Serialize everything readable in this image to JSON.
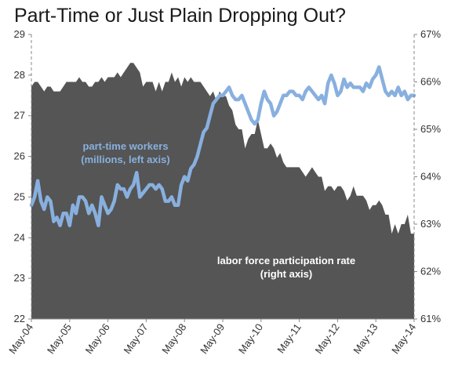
{
  "chart_data": {
    "type": "area+line",
    "title": "Part-Time or Just Plain Dropping Out?",
    "x_tick_labels": [
      "May-04",
      "May-05",
      "May-06",
      "May-07",
      "May-08",
      "May-09",
      "May-10",
      "May-11",
      "May-12",
      "May-13",
      "May-14"
    ],
    "x_range": [
      "2004-05",
      "2014-05"
    ],
    "left_axis": {
      "ylim": [
        22,
        29
      ],
      "ticks": [
        22,
        23,
        24,
        25,
        26,
        27,
        28,
        29
      ]
    },
    "right_axis": {
      "ylim": [
        61,
        67
      ],
      "ticks": [
        "61%",
        "62%",
        "63%",
        "64%",
        "65%",
        "66%",
        "67%"
      ],
      "tick_values": [
        61,
        62,
        63,
        64,
        65,
        66,
        67
      ]
    },
    "grid": false,
    "colors": {
      "area": "#555555",
      "line": "#88b0df",
      "axis": "#888888"
    },
    "annotations": [
      {
        "lines": [
          "part-time workers",
          "(millions, left axis)"
        ],
        "color": "#88b0df",
        "refers_to": "part-time workers"
      },
      {
        "lines": [
          "labor force participation rate",
          "(right axis)"
        ],
        "color": "#ffffff",
        "refers_to": "labor force participation rate"
      }
    ],
    "series": [
      {
        "name": "labor force participation rate",
        "axis": "right",
        "kind": "area",
        "points": [
          [
            "2004-05",
            65.9
          ],
          [
            "2004-06",
            66.0
          ],
          [
            "2004-07",
            66.0
          ],
          [
            "2004-08",
            65.9
          ],
          [
            "2004-09",
            65.8
          ],
          [
            "2004-10",
            65.9
          ],
          [
            "2004-11",
            65.9
          ],
          [
            "2004-12",
            65.8
          ],
          [
            "2005-01",
            65.8
          ],
          [
            "2005-02",
            65.8
          ],
          [
            "2005-03",
            65.9
          ],
          [
            "2005-04",
            66.0
          ],
          [
            "2005-05",
            66.0
          ],
          [
            "2005-06",
            66.0
          ],
          [
            "2005-07",
            66.0
          ],
          [
            "2005-08",
            66.1
          ],
          [
            "2005-09",
            66.0
          ],
          [
            "2005-10",
            66.0
          ],
          [
            "2005-11",
            65.9
          ],
          [
            "2005-12",
            65.9
          ],
          [
            "2006-01",
            66.0
          ],
          [
            "2006-02",
            66.0
          ],
          [
            "2006-03",
            66.1
          ],
          [
            "2006-04",
            66.0
          ],
          [
            "2006-05",
            66.1
          ],
          [
            "2006-06",
            66.1
          ],
          [
            "2006-07",
            66.1
          ],
          [
            "2006-08",
            66.2
          ],
          [
            "2006-09",
            66.1
          ],
          [
            "2006-10",
            66.2
          ],
          [
            "2006-11",
            66.3
          ],
          [
            "2006-12",
            66.4
          ],
          [
            "2007-01",
            66.4
          ],
          [
            "2007-02",
            66.3
          ],
          [
            "2007-03",
            66.2
          ],
          [
            "2007-04",
            65.9
          ],
          [
            "2007-05",
            66.0
          ],
          [
            "2007-06",
            66.0
          ],
          [
            "2007-07",
            66.0
          ],
          [
            "2007-08",
            65.8
          ],
          [
            "2007-09",
            66.0
          ],
          [
            "2007-10",
            65.8
          ],
          [
            "2007-11",
            66.0
          ],
          [
            "2007-12",
            66.0
          ],
          [
            "2008-01",
            66.2
          ],
          [
            "2008-02",
            66.0
          ],
          [
            "2008-03",
            66.1
          ],
          [
            "2008-04",
            65.9
          ],
          [
            "2008-05",
            66.1
          ],
          [
            "2008-06",
            66.0
          ],
          [
            "2008-07",
            66.1
          ],
          [
            "2008-08",
            66.0
          ],
          [
            "2008-09",
            66.0
          ],
          [
            "2008-10",
            66.0
          ],
          [
            "2008-11",
            65.9
          ],
          [
            "2008-12",
            65.8
          ],
          [
            "2009-01",
            65.7
          ],
          [
            "2009-02",
            65.8
          ],
          [
            "2009-03",
            65.6
          ],
          [
            "2009-04",
            65.8
          ],
          [
            "2009-05",
            65.7
          ],
          [
            "2009-06",
            65.7
          ],
          [
            "2009-07",
            65.5
          ],
          [
            "2009-08",
            65.4
          ],
          [
            "2009-09",
            65.1
          ],
          [
            "2009-10",
            65.0
          ],
          [
            "2009-11",
            65.0
          ],
          [
            "2009-12",
            64.6
          ],
          [
            "2010-01",
            64.8
          ],
          [
            "2010-02",
            64.9
          ],
          [
            "2010-03",
            64.9
          ],
          [
            "2010-04",
            65.2
          ],
          [
            "2010-05",
            64.9
          ],
          [
            "2010-06",
            64.6
          ],
          [
            "2010-07",
            64.6
          ],
          [
            "2010-08",
            64.7
          ],
          [
            "2010-09",
            64.6
          ],
          [
            "2010-10",
            64.4
          ],
          [
            "2010-11",
            64.5
          ],
          [
            "2010-12",
            64.3
          ],
          [
            "2011-01",
            64.2
          ],
          [
            "2011-02",
            64.2
          ],
          [
            "2011-03",
            64.2
          ],
          [
            "2011-04",
            64.2
          ],
          [
            "2011-05",
            64.2
          ],
          [
            "2011-06",
            64.1
          ],
          [
            "2011-07",
            64.0
          ],
          [
            "2011-08",
            64.1
          ],
          [
            "2011-09",
            64.2
          ],
          [
            "2011-10",
            64.1
          ],
          [
            "2011-11",
            64.0
          ],
          [
            "2011-12",
            64.0
          ],
          [
            "2012-01",
            63.7
          ],
          [
            "2012-02",
            63.8
          ],
          [
            "2012-03",
            63.8
          ],
          [
            "2012-04",
            63.7
          ],
          [
            "2012-05",
            63.8
          ],
          [
            "2012-06",
            63.8
          ],
          [
            "2012-07",
            63.7
          ],
          [
            "2012-08",
            63.5
          ],
          [
            "2012-09",
            63.6
          ],
          [
            "2012-10",
            63.8
          ],
          [
            "2012-11",
            63.6
          ],
          [
            "2012-12",
            63.6
          ],
          [
            "2013-01",
            63.6
          ],
          [
            "2013-02",
            63.5
          ],
          [
            "2013-03",
            63.3
          ],
          [
            "2013-04",
            63.4
          ],
          [
            "2013-05",
            63.4
          ],
          [
            "2013-06",
            63.5
          ],
          [
            "2013-07",
            63.4
          ],
          [
            "2013-08",
            63.2
          ],
          [
            "2013-09",
            63.2
          ],
          [
            "2013-10",
            62.8
          ],
          [
            "2013-11",
            63.0
          ],
          [
            "2013-12",
            62.8
          ],
          [
            "2014-01",
            63.0
          ],
          [
            "2014-02",
            63.0
          ],
          [
            "2014-03",
            63.2
          ],
          [
            "2014-04",
            62.8
          ],
          [
            "2014-05",
            62.8
          ]
        ]
      },
      {
        "name": "part-time workers",
        "axis": "left",
        "kind": "line",
        "points": [
          [
            "2004-05",
            24.8
          ],
          [
            "2004-06",
            25.0
          ],
          [
            "2004-07",
            25.4
          ],
          [
            "2004-08",
            24.9
          ],
          [
            "2004-09",
            24.7
          ],
          [
            "2004-10",
            25.0
          ],
          [
            "2004-11",
            24.9
          ],
          [
            "2004-12",
            24.4
          ],
          [
            "2005-01",
            24.5
          ],
          [
            "2005-02",
            24.3
          ],
          [
            "2005-03",
            24.6
          ],
          [
            "2005-04",
            24.6
          ],
          [
            "2005-05",
            24.3
          ],
          [
            "2005-06",
            24.8
          ],
          [
            "2005-07",
            24.6
          ],
          [
            "2005-08",
            25.0
          ],
          [
            "2005-09",
            25.0
          ],
          [
            "2005-10",
            24.9
          ],
          [
            "2005-11",
            24.6
          ],
          [
            "2005-12",
            24.8
          ],
          [
            "2006-01",
            24.6
          ],
          [
            "2006-02",
            24.3
          ],
          [
            "2006-03",
            25.0
          ],
          [
            "2006-04",
            24.8
          ],
          [
            "2006-05",
            24.6
          ],
          [
            "2006-06",
            24.7
          ],
          [
            "2006-07",
            24.9
          ],
          [
            "2006-08",
            25.3
          ],
          [
            "2006-09",
            25.2
          ],
          [
            "2006-10",
            25.2
          ],
          [
            "2006-11",
            25.0
          ],
          [
            "2006-12",
            25.2
          ],
          [
            "2007-01",
            25.3
          ],
          [
            "2007-02",
            25.6
          ],
          [
            "2007-03",
            25.0
          ],
          [
            "2007-04",
            25.1
          ],
          [
            "2007-05",
            25.2
          ],
          [
            "2007-06",
            25.3
          ],
          [
            "2007-07",
            25.3
          ],
          [
            "2007-08",
            25.2
          ],
          [
            "2007-09",
            25.3
          ],
          [
            "2007-10",
            25.2
          ],
          [
            "2007-11",
            24.9
          ],
          [
            "2007-12",
            24.9
          ],
          [
            "2008-01",
            25.0
          ],
          [
            "2008-02",
            24.8
          ],
          [
            "2008-03",
            24.8
          ],
          [
            "2008-04",
            25.3
          ],
          [
            "2008-05",
            25.5
          ],
          [
            "2008-06",
            25.4
          ],
          [
            "2008-07",
            25.7
          ],
          [
            "2008-08",
            25.8
          ],
          [
            "2008-09",
            26.0
          ],
          [
            "2008-10",
            26.3
          ],
          [
            "2008-11",
            26.6
          ],
          [
            "2008-12",
            26.7
          ],
          [
            "2009-01",
            27.0
          ],
          [
            "2009-02",
            27.3
          ],
          [
            "2009-03",
            27.4
          ],
          [
            "2009-04",
            27.5
          ],
          [
            "2009-05",
            27.5
          ],
          [
            "2009-06",
            27.6
          ],
          [
            "2009-07",
            27.7
          ],
          [
            "2009-08",
            27.5
          ],
          [
            "2009-09",
            27.4
          ],
          [
            "2009-10",
            27.4
          ],
          [
            "2009-11",
            27.5
          ],
          [
            "2009-12",
            27.3
          ],
          [
            "2010-01",
            27.1
          ],
          [
            "2010-02",
            26.9
          ],
          [
            "2010-03",
            26.8
          ],
          [
            "2010-04",
            26.9
          ],
          [
            "2010-05",
            27.3
          ],
          [
            "2010-06",
            27.6
          ],
          [
            "2010-07",
            27.4
          ],
          [
            "2010-08",
            27.3
          ],
          [
            "2010-09",
            27.0
          ],
          [
            "2010-10",
            27.1
          ],
          [
            "2010-11",
            27.3
          ],
          [
            "2010-12",
            27.5
          ],
          [
            "2011-01",
            27.5
          ],
          [
            "2011-02",
            27.6
          ],
          [
            "2011-03",
            27.6
          ],
          [
            "2011-04",
            27.5
          ],
          [
            "2011-05",
            27.5
          ],
          [
            "2011-06",
            27.4
          ],
          [
            "2011-07",
            27.6
          ],
          [
            "2011-08",
            27.7
          ],
          [
            "2011-09",
            27.6
          ],
          [
            "2011-10",
            27.5
          ],
          [
            "2011-11",
            27.4
          ],
          [
            "2011-12",
            27.5
          ],
          [
            "2012-01",
            27.3
          ],
          [
            "2012-02",
            27.8
          ],
          [
            "2012-03",
            28.0
          ],
          [
            "2012-04",
            27.8
          ],
          [
            "2012-05",
            27.5
          ],
          [
            "2012-06",
            27.6
          ],
          [
            "2012-07",
            27.9
          ],
          [
            "2012-08",
            27.7
          ],
          [
            "2012-09",
            27.8
          ],
          [
            "2012-10",
            27.7
          ],
          [
            "2012-11",
            27.7
          ],
          [
            "2012-12",
            27.7
          ],
          [
            "2013-01",
            27.6
          ],
          [
            "2013-02",
            27.8
          ],
          [
            "2013-03",
            27.7
          ],
          [
            "2013-04",
            27.9
          ],
          [
            "2013-05",
            28.0
          ],
          [
            "2013-06",
            28.2
          ],
          [
            "2013-07",
            27.9
          ],
          [
            "2013-08",
            27.6
          ],
          [
            "2013-09",
            27.5
          ],
          [
            "2013-10",
            27.6
          ],
          [
            "2013-11",
            27.5
          ],
          [
            "2013-12",
            27.7
          ],
          [
            "2014-01",
            27.5
          ],
          [
            "2014-02",
            27.6
          ],
          [
            "2014-03",
            27.4
          ],
          [
            "2014-04",
            27.5
          ],
          [
            "2014-05",
            27.5
          ]
        ]
      }
    ]
  }
}
